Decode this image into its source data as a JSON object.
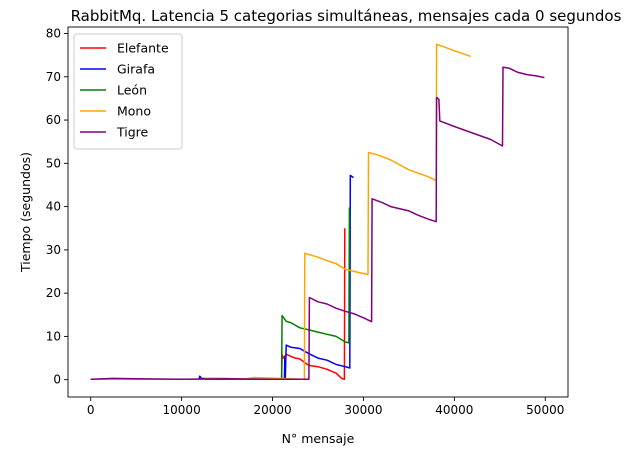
{
  "chart_data": {
    "type": "line",
    "title": "RabbitMq. Latencia 5 categorias simultáneas, mensajes cada 0 segundos",
    "xlabel": "N° mensaje",
    "ylabel": "Tiempo (segundos)",
    "xlim": [
      -2500,
      52500
    ],
    "ylim": [
      -4,
      81.5
    ],
    "xticks": [
      0,
      10000,
      20000,
      30000,
      40000,
      50000
    ],
    "yticks": [
      0,
      10,
      20,
      30,
      40,
      50,
      60,
      70,
      80
    ],
    "grid": false,
    "legend_position": "top-left",
    "series": [
      {
        "name": "Elefante",
        "color": "#ff0000",
        "points": [
          [
            0,
            0.1
          ],
          [
            21000,
            0.1
          ],
          [
            21050,
            5.8
          ],
          [
            21200,
            5.0
          ],
          [
            21500,
            5.9
          ],
          [
            22000,
            5.4
          ],
          [
            22500,
            5.0
          ],
          [
            23000,
            4.8
          ],
          [
            23500,
            4.0
          ],
          [
            24000,
            3.3
          ],
          [
            25000,
            3.0
          ],
          [
            26000,
            2.4
          ],
          [
            27000,
            1.5
          ],
          [
            27600,
            0.3
          ],
          [
            27900,
            0.1
          ],
          [
            27950,
            35.0
          ]
        ]
      },
      {
        "name": "Girafa",
        "color": "#0000ff",
        "points": [
          [
            0,
            0.1
          ],
          [
            11900,
            0.1
          ],
          [
            12000,
            0.8
          ],
          [
            12200,
            0.3
          ],
          [
            21300,
            0.1
          ],
          [
            21350,
            5.0
          ],
          [
            21400,
            0.5
          ],
          [
            21500,
            8.0
          ],
          [
            22000,
            7.5
          ],
          [
            23000,
            7.2
          ],
          [
            24000,
            6.0
          ],
          [
            25000,
            5.0
          ],
          [
            26000,
            4.5
          ],
          [
            27000,
            3.5
          ],
          [
            28000,
            3.0
          ],
          [
            28500,
            2.7
          ],
          [
            28550,
            47.2
          ],
          [
            28900,
            46.7
          ]
        ]
      },
      {
        "name": "León",
        "color": "#008000",
        "points": [
          [
            0,
            0.1
          ],
          [
            21000,
            0.1
          ],
          [
            21050,
            14.8
          ],
          [
            21500,
            13.5
          ],
          [
            22000,
            13.2
          ],
          [
            23000,
            12.0
          ],
          [
            24000,
            11.5
          ],
          [
            25000,
            11.0
          ],
          [
            26000,
            10.5
          ],
          [
            27000,
            10.0
          ],
          [
            28000,
            8.7
          ],
          [
            28400,
            8.5
          ],
          [
            28450,
            39.8
          ]
        ]
      },
      {
        "name": "Mono",
        "color": "#ffa500",
        "points": [
          [
            0,
            0.1
          ],
          [
            12500,
            0.1
          ],
          [
            12600,
            0.3
          ],
          [
            17000,
            0.2
          ],
          [
            18000,
            0.5
          ],
          [
            23500,
            0.1
          ],
          [
            23550,
            29.2
          ],
          [
            25000,
            28.3
          ],
          [
            26000,
            27.5
          ],
          [
            27000,
            26.8
          ],
          [
            28000,
            25.5
          ],
          [
            29000,
            25.0
          ],
          [
            30500,
            24.3
          ],
          [
            30550,
            52.5
          ],
          [
            31500,
            52.0
          ],
          [
            33000,
            50.8
          ],
          [
            35000,
            48.5
          ],
          [
            37000,
            47.0
          ],
          [
            38000,
            46.0
          ],
          [
            38050,
            77.5
          ],
          [
            39000,
            76.8
          ],
          [
            40000,
            76.0
          ],
          [
            41000,
            75.3
          ],
          [
            41800,
            74.7
          ]
        ]
      },
      {
        "name": "Tigre",
        "color": "#800080",
        "points": [
          [
            0,
            0.1
          ],
          [
            2500,
            0.3
          ],
          [
            5000,
            0.2
          ],
          [
            10000,
            0.1
          ],
          [
            15000,
            0.2
          ],
          [
            20000,
            0.1
          ],
          [
            24000,
            0.1
          ],
          [
            24050,
            19.0
          ],
          [
            25000,
            18.0
          ],
          [
            26000,
            17.5
          ],
          [
            27000,
            16.5
          ],
          [
            28000,
            15.8
          ],
          [
            29000,
            15.2
          ],
          [
            30000,
            14.3
          ],
          [
            30900,
            13.4
          ],
          [
            30950,
            41.8
          ],
          [
            32000,
            41.0
          ],
          [
            33000,
            40.0
          ],
          [
            35000,
            39.0
          ],
          [
            36000,
            38.0
          ],
          [
            37000,
            37.2
          ],
          [
            38000,
            36.5
          ],
          [
            38050,
            65.2
          ],
          [
            38300,
            64.8
          ],
          [
            38400,
            59.8
          ],
          [
            40000,
            58.5
          ],
          [
            42000,
            57.0
          ],
          [
            44000,
            55.5
          ],
          [
            45300,
            54.0
          ],
          [
            45350,
            72.2
          ],
          [
            46000,
            72.0
          ],
          [
            47000,
            71.0
          ],
          [
            48000,
            70.5
          ],
          [
            49000,
            70.2
          ],
          [
            49900,
            69.8
          ]
        ]
      }
    ]
  }
}
